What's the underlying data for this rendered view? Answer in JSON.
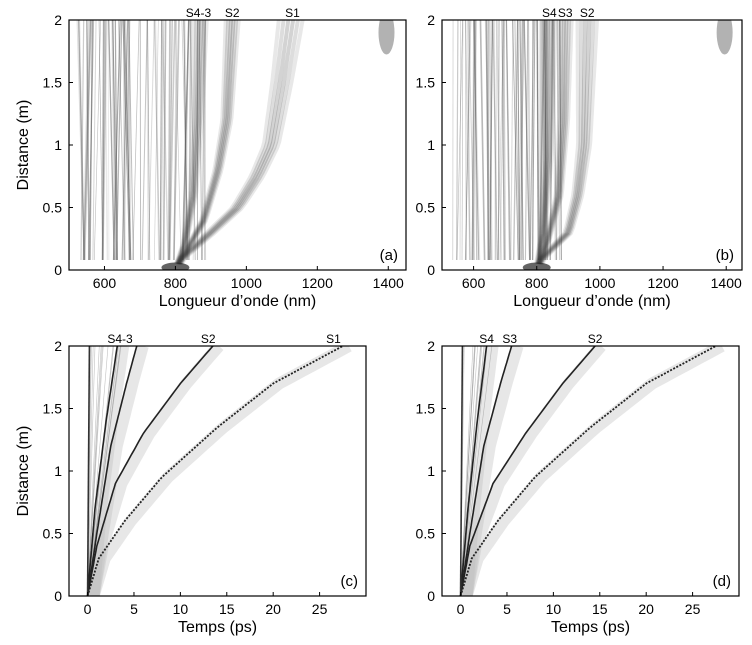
{
  "chart_data": [
    {
      "panel": "(a)",
      "type": "heatmap",
      "xlabel": "Longueur d’onde (nm)",
      "ylabel": "Distance (m)",
      "xlim": [
        500,
        1450
      ],
      "ylim": [
        0,
        2
      ],
      "xticks": [
        600,
        800,
        1000,
        1200,
        1400
      ],
      "yticks": [
        0,
        0.5,
        1,
        1.5,
        2
      ],
      "peak_labels": [
        {
          "text": "S4-3",
          "x": 865
        },
        {
          "text": "S2",
          "x": 960
        },
        {
          "text": "S1",
          "x": 1130
        }
      ],
      "traces": [
        {
          "name": "S1",
          "points": [
            [
              800,
              0
            ],
            [
              820,
              0.1
            ],
            [
              900,
              0.3
            ],
            [
              975,
              0.5
            ],
            [
              1030,
              0.75
            ],
            [
              1070,
              1.0
            ],
            [
              1100,
              1.5
            ],
            [
              1125,
              2.0
            ]
          ]
        },
        {
          "name": "S2",
          "points": [
            [
              800,
              0
            ],
            [
              830,
              0.15
            ],
            [
              880,
              0.4
            ],
            [
              920,
              0.8
            ],
            [
              945,
              1.2
            ],
            [
              960,
              2.0
            ]
          ]
        },
        {
          "name": "S4-3",
          "points": [
            [
              800,
              0
            ],
            [
              825,
              0.2
            ],
            [
              850,
              0.6
            ],
            [
              862,
              1.2
            ],
            [
              870,
              2.0
            ]
          ]
        }
      ],
      "blobs": [
        {
          "x": 1395,
          "y": 1.9
        }
      ]
    },
    {
      "panel": "(b)",
      "type": "heatmap",
      "xlabel": "Longueur d’onde (nm)",
      "ylabel": "",
      "xlim": [
        500,
        1450
      ],
      "ylim": [
        0,
        2
      ],
      "xticks": [
        600,
        800,
        1000,
        1200,
        1400
      ],
      "yticks": [
        0,
        0.5,
        1,
        1.5,
        2
      ],
      "peak_labels": [
        {
          "text": "S4",
          "x": 840
        },
        {
          "text": "S3",
          "x": 890
        },
        {
          "text": "S2",
          "x": 960
        }
      ],
      "traces": [
        {
          "name": "S2",
          "points": [
            [
              800,
              0
            ],
            [
              820,
              0.1
            ],
            [
              900,
              0.3
            ],
            [
              930,
              0.6
            ],
            [
              950,
              1.0
            ],
            [
              960,
              2.0
            ]
          ]
        },
        {
          "name": "S3",
          "points": [
            [
              800,
              0
            ],
            [
              830,
              0.2
            ],
            [
              870,
              0.6
            ],
            [
              885,
              1.2
            ],
            [
              890,
              2.0
            ]
          ]
        },
        {
          "name": "S4",
          "points": [
            [
              800,
              0
            ],
            [
              820,
              0.3
            ],
            [
              835,
              0.9
            ],
            [
              840,
              2.0
            ]
          ]
        }
      ],
      "blobs": [
        {
          "x": 1395,
          "y": 1.9
        }
      ]
    },
    {
      "panel": "(c)",
      "type": "heatmap",
      "xlabel": "Temps (ps)",
      "ylabel": "Distance (m)",
      "xlim": [
        -2,
        30
      ],
      "ylim": [
        0,
        2
      ],
      "xticks": [
        0,
        5,
        10,
        15,
        20,
        25
      ],
      "yticks": [
        0,
        0.5,
        1,
        1.5,
        2
      ],
      "peak_labels": [
        {
          "text": "S4-3",
          "x": 3.5
        },
        {
          "text": "S2",
          "x": 13
        },
        {
          "text": "S1",
          "x": 26.5
        }
      ],
      "traces": [
        {
          "name": "S1",
          "points": [
            [
              0,
              0
            ],
            [
              1.2,
              0.3
            ],
            [
              4,
              0.6
            ],
            [
              8,
              0.95
            ],
            [
              14,
              1.35
            ],
            [
              20,
              1.7
            ],
            [
              27.5,
              2.0
            ]
          ]
        },
        {
          "name": "S2",
          "points": [
            [
              0,
              0
            ],
            [
              1,
              0.4
            ],
            [
              3,
              0.9
            ],
            [
              6,
              1.3
            ],
            [
              10,
              1.7
            ],
            [
              13.5,
              2.0
            ]
          ]
        },
        {
          "name": "S3",
          "points": [
            [
              0,
              0
            ],
            [
              1,
              0.5
            ],
            [
              2.5,
              1.2
            ],
            [
              4.2,
              1.7
            ],
            [
              5.3,
              2.0
            ]
          ]
        },
        {
          "name": "S4",
          "points": [
            [
              0,
              0
            ],
            [
              0.8,
              0.7
            ],
            [
              2,
              1.4
            ],
            [
              3.2,
              2.0
            ]
          ]
        }
      ]
    },
    {
      "panel": "(d)",
      "type": "heatmap",
      "xlabel": "Temps (ps)",
      "ylabel": "",
      "xlim": [
        -2,
        30
      ],
      "ylim": [
        0,
        2
      ],
      "xticks": [
        0,
        5,
        10,
        15,
        20,
        25
      ],
      "yticks": [
        0,
        0.5,
        1,
        1.5,
        2
      ],
      "peak_labels": [
        {
          "text": "S4",
          "x": 2.8
        },
        {
          "text": "S3",
          "x": 5.3
        },
        {
          "text": "S2",
          "x": 14.5
        }
      ],
      "traces": [
        {
          "name": "S1",
          "points": [
            [
              0,
              0
            ],
            [
              1.2,
              0.3
            ],
            [
              4,
              0.6
            ],
            [
              8,
              0.95
            ],
            [
              14,
              1.35
            ],
            [
              20,
              1.7
            ],
            [
              27.5,
              2.0
            ]
          ]
        },
        {
          "name": "S2",
          "points": [
            [
              0,
              0
            ],
            [
              1,
              0.4
            ],
            [
              3.5,
              0.9
            ],
            [
              7,
              1.3
            ],
            [
              11,
              1.7
            ],
            [
              14.5,
              2.0
            ]
          ]
        },
        {
          "name": "S3",
          "points": [
            [
              0,
              0
            ],
            [
              1,
              0.5
            ],
            [
              2.5,
              1.2
            ],
            [
              4.3,
              1.7
            ],
            [
              5.5,
              2.0
            ]
          ]
        },
        {
          "name": "S4",
          "points": [
            [
              0,
              0
            ],
            [
              0.8,
              0.7
            ],
            [
              1.8,
              1.4
            ],
            [
              2.8,
              2.0
            ]
          ]
        }
      ]
    }
  ]
}
